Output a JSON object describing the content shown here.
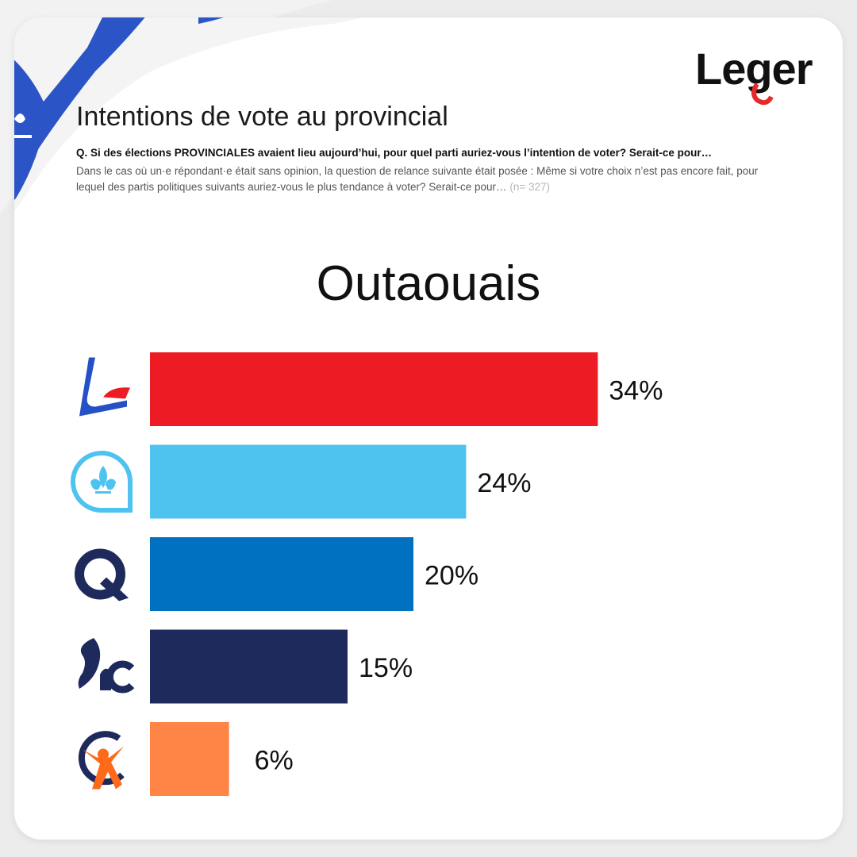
{
  "brand": {
    "logo_text": "Leger",
    "colors": {
      "logo_black": "#111111",
      "logo_red": "#e52a2a",
      "flag_blue": "#2b54c7"
    }
  },
  "header": {
    "title": "Intentions de vote au provincial",
    "question": "Q. Si des élections PROVINCIALES avaient lieu aujourd’hui, pour quel parti auriez-vous l’intention de voter? Serait-ce pour…",
    "relance": "Dans le cas où un·e répondant·e était sans opinion, la question de relance suivante était posée : Même si votre choix n’est pas encore fait, pour lequel des partis politiques suivants auriez-vous le plus tendance à voter? Serait-ce pour…",
    "sample": "(n= 327)"
  },
  "chart_data": {
    "type": "bar",
    "orientation": "horizontal",
    "title": "Outaouais",
    "categories": [
      "liberal-logo",
      "pq-logo",
      "conservative-logo",
      "caq-logo",
      "qs-logo"
    ],
    "values": [
      34,
      24,
      20,
      15,
      6
    ],
    "value_labels": [
      "34%",
      "24%",
      "20%",
      "15%",
      "6%"
    ],
    "colors": [
      "#ed1c24",
      "#4ec3ef",
      "#0070c0",
      "#1f2a5c",
      "#ff8547"
    ],
    "xlim": [
      0,
      40
    ],
    "grid": false,
    "legend": "none",
    "icons": [
      "liberal-logo-icon",
      "pq-logo-icon",
      "conservative-logo-icon",
      "caq-logo-icon",
      "qs-logo-icon"
    ]
  }
}
